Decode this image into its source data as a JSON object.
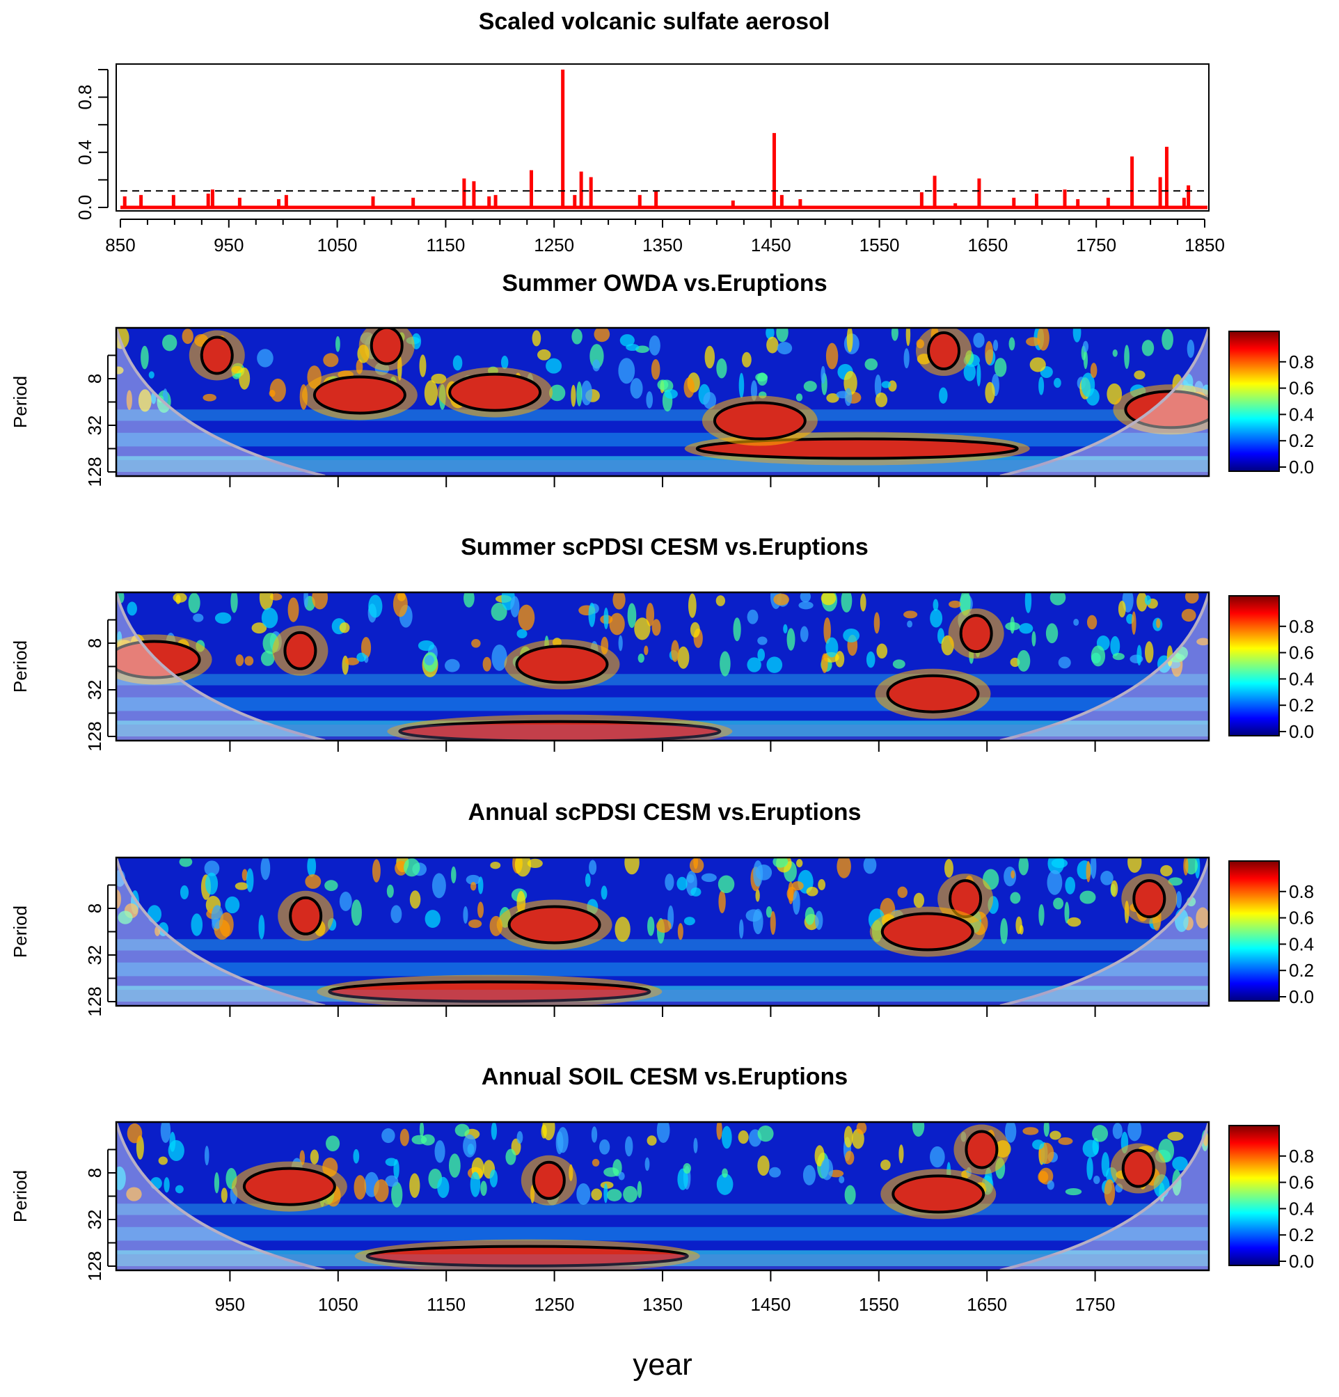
{
  "figure": {
    "xlabel": "year"
  },
  "colorscale": {
    "stops": [
      "#00007F",
      "#0000FF",
      "#007FFF",
      "#00FFFF",
      "#7FFF7F",
      "#FFFF00",
      "#FF7F00",
      "#FF0000",
      "#7F0000"
    ],
    "ticks": [
      "0.0",
      "0.2",
      "0.4",
      "0.6",
      "0.8"
    ],
    "tick_values": [
      0.0,
      0.2,
      0.4,
      0.6,
      0.8
    ],
    "range": [
      0,
      1
    ]
  },
  "chart_data": [
    {
      "type": "bar",
      "title": "Scaled volcanic sulfate aerosol",
      "xlabel": "",
      "ylabel": "",
      "xlim": [
        850,
        1850
      ],
      "ylim": [
        0,
        1
      ],
      "xticks": [
        "850",
        "950",
        "1050",
        "1150",
        "1250",
        "1350",
        "1450",
        "1550",
        "1650",
        "1750",
        "1850"
      ],
      "xtick_values": [
        850,
        950,
        1050,
        1150,
        1250,
        1350,
        1450,
        1550,
        1650,
        1750,
        1850
      ],
      "yticks": [
        "0.0",
        "0.4",
        "0.8"
      ],
      "ytick_values": [
        0.0,
        0.4,
        0.8
      ],
      "threshold": 0.12,
      "color": "#FF0000",
      "series": [
        {
          "x": [
            854,
            869,
            899,
            931,
            935,
            960,
            996,
            1003,
            1083,
            1120,
            1167,
            1176,
            1190,
            1196,
            1229,
            1258,
            1269,
            1275,
            1284,
            1329,
            1344,
            1415,
            1453,
            1460,
            1477,
            1589,
            1601,
            1620,
            1642,
            1674,
            1695,
            1721,
            1733,
            1761,
            1783,
            1809,
            1815,
            1831,
            1835
          ],
          "values": [
            0.08,
            0.09,
            0.09,
            0.1,
            0.13,
            0.07,
            0.06,
            0.09,
            0.08,
            0.07,
            0.21,
            0.19,
            0.08,
            0.09,
            0.27,
            1.0,
            0.09,
            0.26,
            0.22,
            0.09,
            0.12,
            0.05,
            0.54,
            0.09,
            0.06,
            0.11,
            0.23,
            0.03,
            0.21,
            0.07,
            0.1,
            0.13,
            0.06,
            0.07,
            0.37,
            0.22,
            0.44,
            0.07,
            0.16
          ]
        }
      ]
    },
    {
      "type": "heatmap",
      "title": "Summer OWDA vs.Eruptions",
      "ylabel": "Period",
      "xlim": [
        850,
        1850
      ],
      "yticks": [
        "8",
        "32",
        "128"
      ],
      "ytick_values": [
        8,
        32,
        128
      ],
      "ylim": [
        2,
        128
      ],
      "regions": [
        {
          "x": 1530,
          "period": 64,
          "value": 0.97
        },
        {
          "x": 1440,
          "period": 28,
          "value": 0.95
        },
        {
          "x": 1070,
          "period": 13,
          "value": 0.93
        },
        {
          "x": 1610,
          "period": 3.5,
          "value": 0.92
        },
        {
          "x": 1095,
          "period": 3,
          "value": 0.86
        },
        {
          "x": 938,
          "period": 4,
          "value": 0.86
        },
        {
          "x": 1820,
          "period": 20,
          "value": 0.82
        },
        {
          "x": 1195,
          "period": 12,
          "value": 0.78
        }
      ]
    },
    {
      "type": "heatmap",
      "title": "Summer scPDSI CESM vs.Eruptions",
      "ylabel": "Period",
      "xlim": [
        850,
        1850
      ],
      "yticks": [
        "8",
        "32",
        "128"
      ],
      "ytick_values": [
        8,
        32,
        128
      ],
      "ylim": [
        2,
        128
      ],
      "regions": [
        {
          "x": 1257,
          "period": 15,
          "value": 0.95
        },
        {
          "x": 1015,
          "period": 10,
          "value": 0.9
        },
        {
          "x": 1600,
          "period": 36,
          "value": 0.86
        },
        {
          "x": 1640,
          "period": 6,
          "value": 0.88
        },
        {
          "x": 1255,
          "period": 110,
          "value": 0.8
        },
        {
          "x": 880,
          "period": 13,
          "value": 0.85
        }
      ]
    },
    {
      "type": "heatmap",
      "title": "Annual scPDSI CESM vs.Eruptions",
      "ylabel": "Period",
      "xlim": [
        850,
        1850
      ],
      "yticks": [
        "8",
        "32",
        "128"
      ],
      "ytick_values": [
        8,
        32,
        128
      ],
      "ylim": [
        2,
        128
      ],
      "regions": [
        {
          "x": 1190,
          "period": 95,
          "value": 0.98
        },
        {
          "x": 1250,
          "period": 13,
          "value": 0.95
        },
        {
          "x": 1020,
          "period": 10,
          "value": 0.93
        },
        {
          "x": 1630,
          "period": 6,
          "value": 0.9
        },
        {
          "x": 1595,
          "period": 16,
          "value": 0.86
        },
        {
          "x": 1800,
          "period": 6,
          "value": 0.85
        }
      ]
    },
    {
      "type": "heatmap",
      "title": "Annual SOIL CESM vs.Eruptions",
      "ylabel": "Period",
      "xlim": [
        850,
        1850
      ],
      "xticks": [
        "950",
        "1050",
        "1150",
        "1250",
        "1350",
        "1450",
        "1550",
        "1650",
        "1750"
      ],
      "xtick_values": [
        950,
        1050,
        1150,
        1250,
        1350,
        1450,
        1550,
        1650,
        1750
      ],
      "yticks": [
        "8",
        "32",
        "128"
      ],
      "ytick_values": [
        8,
        32,
        128
      ],
      "ylim": [
        2,
        128
      ],
      "regions": [
        {
          "x": 1225,
          "period": 95,
          "value": 0.98
        },
        {
          "x": 1245,
          "period": 10,
          "value": 0.95
        },
        {
          "x": 1005,
          "period": 12,
          "value": 0.9
        },
        {
          "x": 1605,
          "period": 15,
          "value": 0.86
        },
        {
          "x": 1645,
          "period": 4,
          "value": 0.88
        },
        {
          "x": 1790,
          "period": 7,
          "value": 0.85
        }
      ]
    }
  ]
}
